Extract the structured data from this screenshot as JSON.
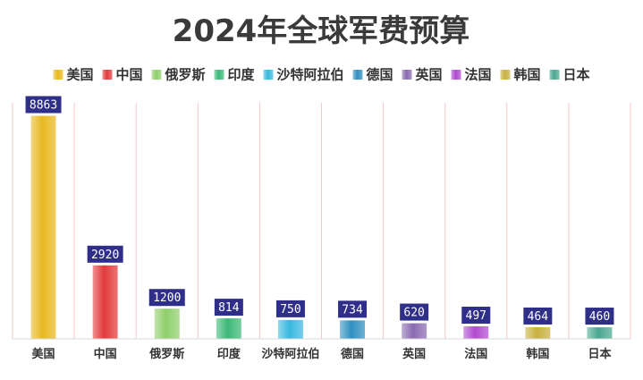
{
  "chart_data": {
    "type": "bar",
    "title": "2024年全球军费预算",
    "categories": [
      "美国",
      "中国",
      "俄罗斯",
      "印度",
      "沙特阿拉伯",
      "德国",
      "英国",
      "法国",
      "韩国",
      "日本"
    ],
    "values": [
      8863,
      2920,
      1200,
      814,
      750,
      734,
      620,
      497,
      464,
      460
    ],
    "colors": [
      "#e8b820",
      "#e23a3a",
      "#8fcf6a",
      "#3cb878",
      "#3ab8e0",
      "#2f8fc0",
      "#8a6ab0",
      "#b04ad0",
      "#c8b040",
      "#4aa890"
    ],
    "legend_position": "top",
    "data_label_bg": "#2f2f8a",
    "gridlines": "vertical",
    "ylim": [
      0,
      9200
    ]
  }
}
